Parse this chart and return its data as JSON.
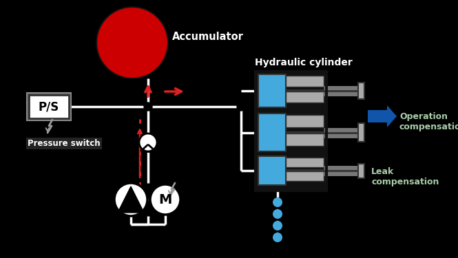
{
  "bg_color": "#000000",
  "text_white": "#ffffff",
  "text_green": "#aaccaa",
  "accumulator_color": "#cc0000",
  "cylinder_blue": "#44aadd",
  "cylinder_gray": "#aaaaaa",
  "line_color": "#ffffff",
  "red_color": "#dd2222",
  "blue_arrow_color": "#1155aa",
  "water_color": "#44aadd",
  "label_accumulator": "Accumulator",
  "label_ps": "P/S",
  "label_pressure_switch": "Pressure switch",
  "label_hydraulic_cylinder": "Hydraulic cylinder",
  "label_operation": "Operation\ncompensation",
  "label_leak": "Leak\ncompensation",
  "label_M": "M",
  "figw": 6.65,
  "figh": 3.75,
  "dpi": 100
}
